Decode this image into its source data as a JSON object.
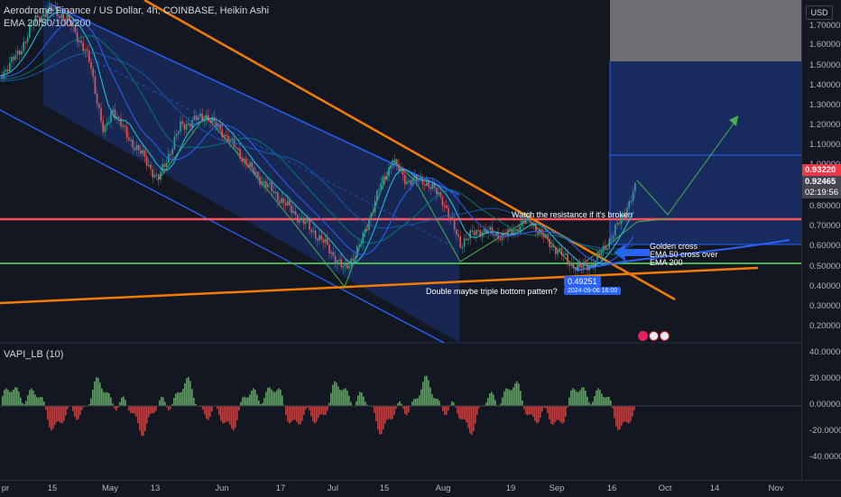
{
  "header": {
    "symbol_line": "Aerodrome Finance / US Dollar, 4h, COINBASE, Heikin Ashi",
    "ema_line": "EMA 20/50/100/200"
  },
  "indicator": {
    "label": "VAPI_LB (10)"
  },
  "currency": "USD",
  "price_axis": [
    "1.70000",
    "1.60000",
    "1.50000",
    "1.40000",
    "1.30000",
    "1.20000",
    "1.10000",
    "1.00000",
    "0.90000",
    "0.80000",
    "0.70000",
    "0.60000",
    "0.50000",
    "0.40000",
    "0.30000",
    "0.20000"
  ],
  "price_tags": {
    "last": "0.93220",
    "ema": "0.92465",
    "countdown": "02:19:56"
  },
  "osc_axis": [
    "40.00000",
    "20.00000",
    "0.00000",
    "-20.00000",
    "-40.00000"
  ],
  "time_axis": [
    "pr",
    "15",
    "May",
    "13",
    "Jun",
    "17",
    "Jul",
    "15",
    "Aug",
    "19",
    "Sep",
    "16",
    "Oct",
    "14",
    "Nov"
  ],
  "annotations": {
    "resistance": "Watch the resistance if it's broken",
    "golden_cross_1": "Golden cross",
    "golden_cross_2": "EMA 50 cross over",
    "golden_cross_3": "EMA 200",
    "bottom_pattern": "Double maybe triple bottom pattern?",
    "low_price": "0.49251",
    "low_date": "2024-09-06 16:00"
  },
  "colors": {
    "background": "#131722",
    "bull": "#26a69a",
    "bear": "#ef5350",
    "resistance_line": "#f7525f",
    "support_line": "#4caf50",
    "trend_line": "#f57c00",
    "channel": "#2962ff",
    "projection": "#4caf50",
    "tag_last": "#f23645",
    "tag_ema": "#434651"
  }
}
